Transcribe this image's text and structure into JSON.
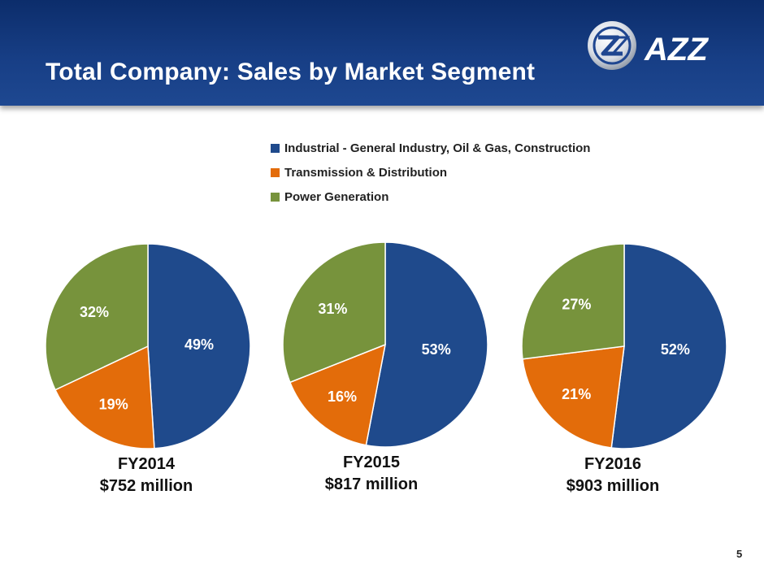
{
  "header": {
    "title": "Total Company: Sales by Market Segment"
  },
  "logo": {
    "text": "AZZ",
    "icon": "azz-emblem-icon",
    "color": "#1f4690"
  },
  "legend": {
    "items": [
      {
        "label": "Industrial - General Industry, Oil & Gas, Construction",
        "color": "#1f4a8c"
      },
      {
        "label": "Transmission & Distribution",
        "color": "#e36c0a"
      },
      {
        "label": "Power Generation",
        "color": "#77933c"
      }
    ]
  },
  "chart_data": [
    {
      "type": "pie",
      "title": "FY2014",
      "subtitle": "$752 million",
      "categories": [
        "Industrial - General Industry, Oil & Gas, Construction",
        "Transmission & Distribution",
        "Power Generation"
      ],
      "values": [
        49,
        19,
        32
      ],
      "labels": [
        "49%",
        "19%",
        "32%"
      ],
      "colors": [
        "#1f4a8c",
        "#e36c0a",
        "#77933c"
      ]
    },
    {
      "type": "pie",
      "title": "FY2015",
      "subtitle": "$817 million",
      "categories": [
        "Industrial - General Industry, Oil & Gas, Construction",
        "Transmission & Distribution",
        "Power Generation"
      ],
      "values": [
        53,
        16,
        31
      ],
      "labels": [
        "53%",
        "16%",
        "31%"
      ],
      "colors": [
        "#1f4a8c",
        "#e36c0a",
        "#77933c"
      ]
    },
    {
      "type": "pie",
      "title": "FY2016",
      "subtitle": "$903 million",
      "categories": [
        "Industrial - General Industry, Oil & Gas, Construction",
        "Transmission & Distribution",
        "Power Generation"
      ],
      "values": [
        52,
        21,
        27
      ],
      "labels": [
        "52%",
        "21%",
        "27%"
      ],
      "colors": [
        "#1f4a8c",
        "#e36c0a",
        "#77933c"
      ]
    }
  ],
  "footer": {
    "page_number": "5"
  }
}
